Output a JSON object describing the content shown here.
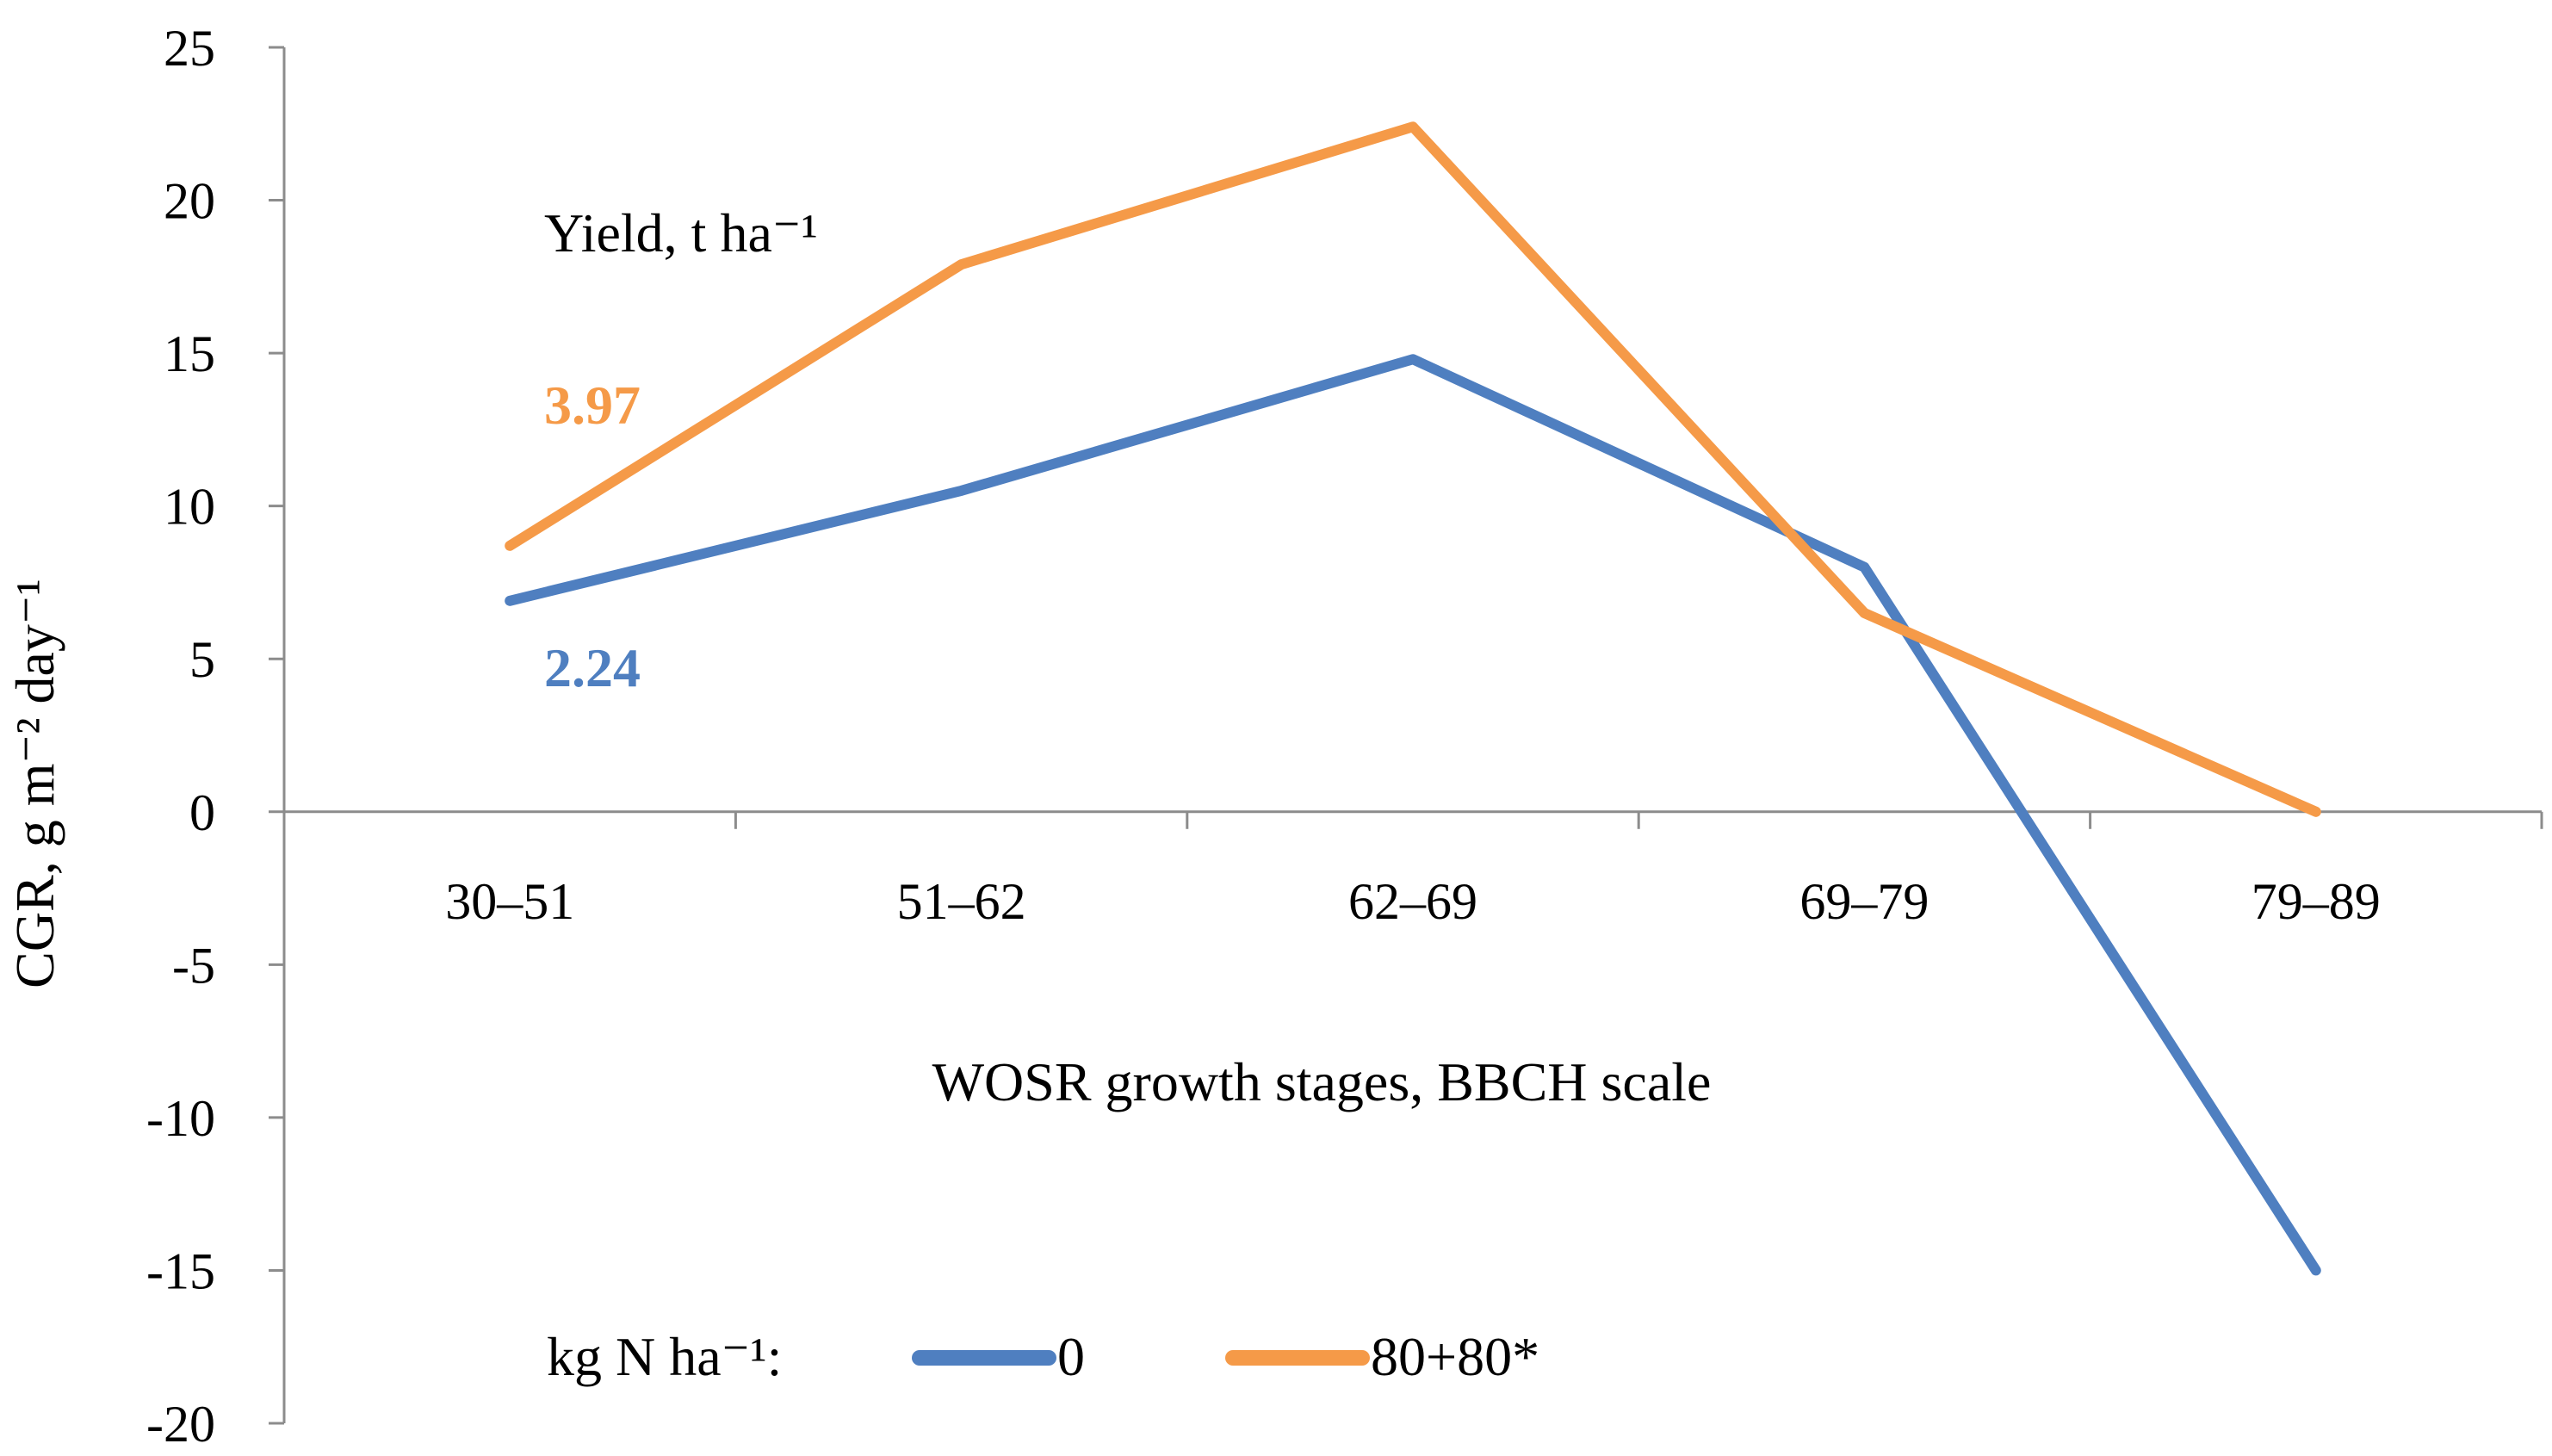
{
  "chart_data": {
    "type": "line",
    "categories": [
      "30–51",
      "51–62",
      "62–69",
      "69–79",
      "79–89"
    ],
    "series": [
      {
        "name": "0",
        "values": [
          6.9,
          10.5,
          14.8,
          8.0,
          -15.0
        ],
        "color": "#4f7fc0",
        "yield_label": "2.24"
      },
      {
        "name": "80+80*",
        "values": [
          8.7,
          17.9,
          22.4,
          6.5,
          0.0
        ],
        "color": "#f59a48",
        "yield_label": "3.97"
      }
    ],
    "xlabel": "WOSR growth stages, BBCH scale",
    "ylabel": "CGR, g m⁻² day⁻¹",
    "ylim": [
      -20,
      25
    ],
    "yticks": [
      25,
      20,
      15,
      10,
      5,
      0,
      -5,
      -10,
      -15,
      -20
    ],
    "annotation": "Yield, t ha⁻¹",
    "legend_title": "kg N ha⁻¹:",
    "legend_position": "bottom",
    "grid": false
  }
}
